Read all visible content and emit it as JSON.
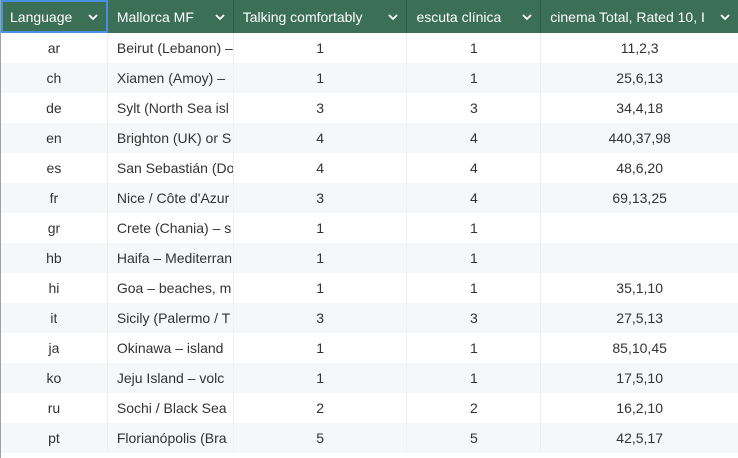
{
  "columns": [
    {
      "label": "Language"
    },
    {
      "label": "Mallorca MF"
    },
    {
      "label": "Talking comfortably"
    },
    {
      "label": "escuta clínica"
    },
    {
      "label": "cinema Total, Rated 10, I"
    }
  ],
  "rows": [
    [
      "ar",
      "Beirut (Lebanon) –",
      "1",
      "1",
      "11,2,3"
    ],
    [
      "ch",
      "Xiamen (Amoy) –",
      "1",
      "1",
      "25,6,13"
    ],
    [
      "de",
      "Sylt (North Sea isl",
      "3",
      "3",
      "34,4,18"
    ],
    [
      "en",
      "Brighton (UK) or S",
      "4",
      "4",
      "440,37,98"
    ],
    [
      "es",
      "San Sebastián (Do",
      "4",
      "4",
      "48,6,20"
    ],
    [
      "fr",
      "Nice / Côte d'Azur",
      "3",
      "4",
      "69,13,25"
    ],
    [
      "gr",
      "Crete (Chania) – s",
      "1",
      "1",
      ""
    ],
    [
      "hb",
      "Haifa – Mediterran",
      "1",
      "1",
      ""
    ],
    [
      "hi",
      "Goa – beaches, m",
      "1",
      "1",
      "35,1,10"
    ],
    [
      "it",
      "Sicily (Palermo / T",
      "3",
      "3",
      "27,5,13"
    ],
    [
      "ja",
      "Okinawa – island",
      "1",
      "1",
      "85,10,45"
    ],
    [
      "ko",
      "Jeju Island – volc",
      "1",
      "1",
      "17,5,10"
    ],
    [
      "ru",
      "Sochi / Black Sea",
      "2",
      "2",
      "16,2,10"
    ],
    [
      "pt",
      "Florianópolis (Bra",
      "5",
      "5",
      "42,5,17"
    ]
  ],
  "colors": {
    "header_bg": "#3b6f56",
    "selected_border": "#4a90e2"
  },
  "icons": {
    "sort": "chevron-down-icon"
  }
}
